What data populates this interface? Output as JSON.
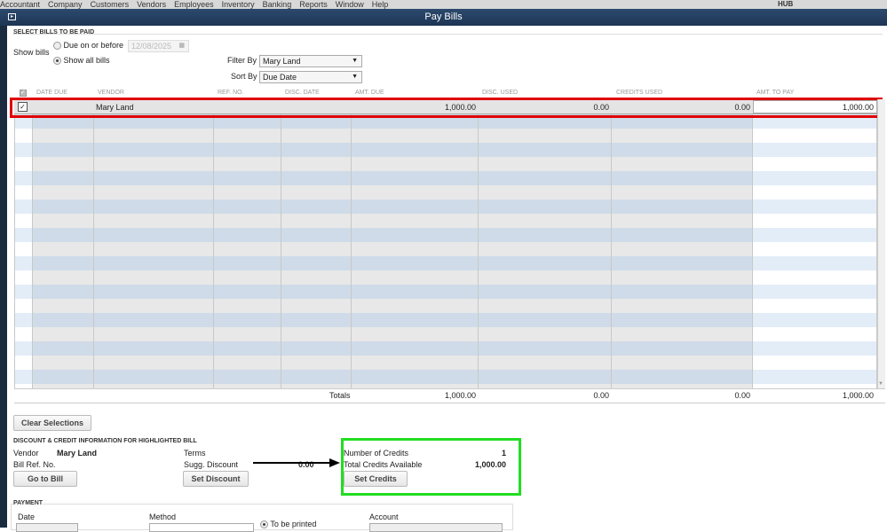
{
  "menu": [
    "Accountant",
    "Company",
    "Customers",
    "Vendors",
    "Employees",
    "Inventory",
    "Banking",
    "Reports",
    "Window",
    "Help"
  ],
  "hub_label": "HUB",
  "window_title": "Pay Bills",
  "select_bills": {
    "section_title": "SELECT BILLS TO BE PAID",
    "show_bills_label": "Show bills",
    "due_on_or_before_label": "Due on or before",
    "due_date": "12/08/2025",
    "show_all_label": "Show all bills",
    "selected_option": "Show all bills",
    "filter_by_label": "Filter By",
    "filter_by_value": "Mary Land",
    "sort_by_label": "Sort By",
    "sort_by_value": "Due Date"
  },
  "table": {
    "columns": [
      "DATE DUE",
      "VENDOR",
      "REF. NO.",
      "DISC. DATE",
      "AMT. DUE",
      "DISC. USED",
      "CREDITS USED",
      "AMT. TO PAY"
    ],
    "rows": [
      {
        "checked": true,
        "date_due": "",
        "vendor": "Mary Land",
        "ref_no": "",
        "disc_date": "",
        "amt_due": "1,000.00",
        "disc_used": "0.00",
        "credits_used": "0.00",
        "amt_to_pay": "1,000.00"
      }
    ],
    "totals_label": "Totals",
    "totals": {
      "amt_due": "1,000.00",
      "disc_used": "0.00",
      "credits_used": "0.00",
      "amt_to_pay": "1,000.00"
    }
  },
  "clear_selections": "Clear Selections",
  "discount_credit": {
    "section_title": "DISCOUNT & CREDIT INFORMATION FOR HIGHLIGHTED BILL",
    "vendor_label": "Vendor",
    "vendor_value": "Mary Land",
    "bill_ref_label": "Bill Ref. No.",
    "terms_label": "Terms",
    "sugg_discount_label": "Sugg. Discount",
    "sugg_discount_value": "0.00",
    "go_to_bill": "Go to Bill",
    "set_discount": "Set Discount",
    "num_credits_label": "Number of Credits",
    "num_credits_value": "1",
    "total_credits_label": "Total Credits Available",
    "total_credits_value": "1,000.00",
    "set_credits": "Set Credits"
  },
  "payment": {
    "section_title": "PAYMENT",
    "date_label": "Date",
    "method_label": "Method",
    "to_be_printed_label": "To be printed",
    "account_label": "Account"
  },
  "colors": {
    "highlight_red": "#e00000",
    "highlight_green": "#22dd22",
    "titlebar": "#23405f"
  }
}
